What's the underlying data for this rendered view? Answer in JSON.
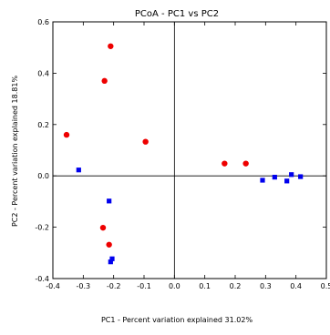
{
  "chart_data": {
    "type": "scatter",
    "title": "PCoA - PC1 vs PC2",
    "xlabel": "PC1 - Percent variation explained 31.02%",
    "ylabel": "PC2 - Percent variation explained 18.81%",
    "xlim": [
      -0.4,
      0.5
    ],
    "ylim": [
      -0.4,
      0.6
    ],
    "xticks": [
      -0.4,
      -0.3,
      -0.2,
      -0.1,
      0.0,
      0.1,
      0.2,
      0.3,
      0.4,
      0.5
    ],
    "xtick_labels": [
      "-0.4",
      "-0.3",
      "-0.2",
      "-0.1",
      "0.0",
      "0.1",
      "0.2",
      "0.3",
      "0.4",
      "0.5"
    ],
    "yticks": [
      -0.4,
      -0.2,
      0.0,
      0.2,
      0.4,
      0.6
    ],
    "ytick_labels": [
      "-0.4",
      "-0.2",
      "0.0",
      "0.2",
      "0.4",
      "0.6"
    ],
    "grid": false,
    "zero_lines": true,
    "series": [
      {
        "marker": "circle",
        "color": "#ee0000",
        "points": [
          {
            "x": -0.21,
            "y": 0.505
          },
          {
            "x": -0.23,
            "y": 0.37
          },
          {
            "x": -0.355,
            "y": 0.16
          },
          {
            "x": -0.095,
            "y": 0.133
          },
          {
            "x": 0.165,
            "y": 0.048
          },
          {
            "x": 0.235,
            "y": 0.048
          },
          {
            "x": -0.235,
            "y": -0.202
          },
          {
            "x": -0.215,
            "y": -0.268
          }
        ]
      },
      {
        "marker": "square",
        "color": "#0000ee",
        "points": [
          {
            "x": -0.315,
            "y": 0.023
          },
          {
            "x": -0.215,
            "y": -0.098
          },
          {
            "x": 0.29,
            "y": -0.017
          },
          {
            "x": 0.33,
            "y": -0.005
          },
          {
            "x": 0.37,
            "y": -0.02
          },
          {
            "x": 0.385,
            "y": 0.005
          },
          {
            "x": 0.415,
            "y": -0.003
          },
          {
            "x": -0.205,
            "y": -0.323
          },
          {
            "x": -0.21,
            "y": -0.335
          }
        ]
      }
    ]
  }
}
